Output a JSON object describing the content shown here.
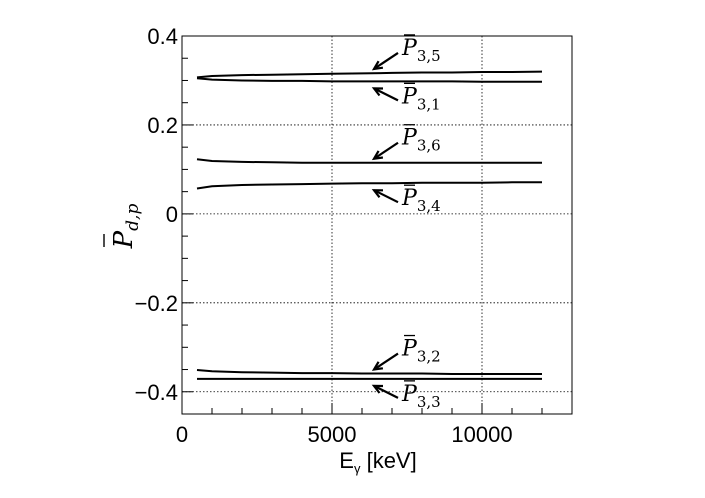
{
  "chart_data": {
    "type": "line",
    "xlabel_main": "E",
    "xlabel_sub": "γ",
    "xlabel_unit": " [keV]",
    "ylabel_main": "P",
    "ylabel_sub": "d,p",
    "xlim": [
      0,
      13000
    ],
    "ylim": [
      -0.45,
      0.4
    ],
    "x_ticks": [
      0,
      5000,
      10000
    ],
    "x_tick_labels": [
      "0",
      "5000",
      "10000"
    ],
    "y_ticks": [
      -0.4,
      -0.2,
      0,
      0.2,
      0.4
    ],
    "y_tick_labels": [
      "−0.4",
      "−0.2",
      "0",
      "0.2",
      "0.4"
    ],
    "grid": true,
    "series": [
      {
        "name_main": "P",
        "name_sub": "3,5",
        "arrow": "in",
        "x": [
          500,
          1000,
          2000,
          3000,
          4000,
          5000,
          6000,
          7000,
          8000,
          9000,
          10000,
          11000,
          12000
        ],
        "y": [
          0.307,
          0.31,
          0.312,
          0.313,
          0.314,
          0.315,
          0.316,
          0.317,
          0.318,
          0.318,
          0.319,
          0.319,
          0.32
        ]
      },
      {
        "name_main": "P",
        "name_sub": "3,1",
        "arrow": "out",
        "x": [
          500,
          1000,
          2000,
          3000,
          4000,
          5000,
          6000,
          7000,
          8000,
          9000,
          10000,
          11000,
          12000
        ],
        "y": [
          0.305,
          0.302,
          0.3,
          0.299,
          0.299,
          0.298,
          0.298,
          0.298,
          0.298,
          0.298,
          0.297,
          0.297,
          0.297
        ]
      },
      {
        "name_main": "P",
        "name_sub": "3,6",
        "arrow": "in",
        "x": [
          500,
          1000,
          2000,
          3000,
          4000,
          5000,
          6000,
          7000,
          8000,
          9000,
          10000,
          11000,
          12000
        ],
        "y": [
          0.123,
          0.119,
          0.117,
          0.116,
          0.115,
          0.115,
          0.115,
          0.115,
          0.115,
          0.115,
          0.115,
          0.115,
          0.115
        ]
      },
      {
        "name_main": "P",
        "name_sub": "3,4",
        "arrow": "out",
        "x": [
          500,
          1000,
          2000,
          3000,
          4000,
          5000,
          6000,
          7000,
          8000,
          9000,
          10000,
          11000,
          12000
        ],
        "y": [
          0.057,
          0.062,
          0.065,
          0.066,
          0.067,
          0.068,
          0.069,
          0.069,
          0.07,
          0.07,
          0.07,
          0.071,
          0.071
        ]
      },
      {
        "name_main": "P",
        "name_sub": "3,2",
        "arrow": "in",
        "x": [
          500,
          1000,
          2000,
          3000,
          4000,
          5000,
          6000,
          7000,
          8000,
          9000,
          10000,
          11000,
          12000
        ],
        "y": [
          -0.351,
          -0.354,
          -0.356,
          -0.357,
          -0.358,
          -0.358,
          -0.359,
          -0.359,
          -0.359,
          -0.36,
          -0.36,
          -0.36,
          -0.36
        ]
      },
      {
        "name_main": "P",
        "name_sub": "3,3",
        "arrow": "out",
        "x": [
          500,
          1000,
          2000,
          3000,
          4000,
          5000,
          6000,
          7000,
          8000,
          9000,
          10000,
          11000,
          12000
        ],
        "y": [
          -0.371,
          -0.371,
          -0.371,
          -0.371,
          -0.371,
          -0.371,
          -0.371,
          -0.371,
          -0.371,
          -0.371,
          -0.371,
          -0.371,
          -0.371
        ]
      }
    ]
  }
}
